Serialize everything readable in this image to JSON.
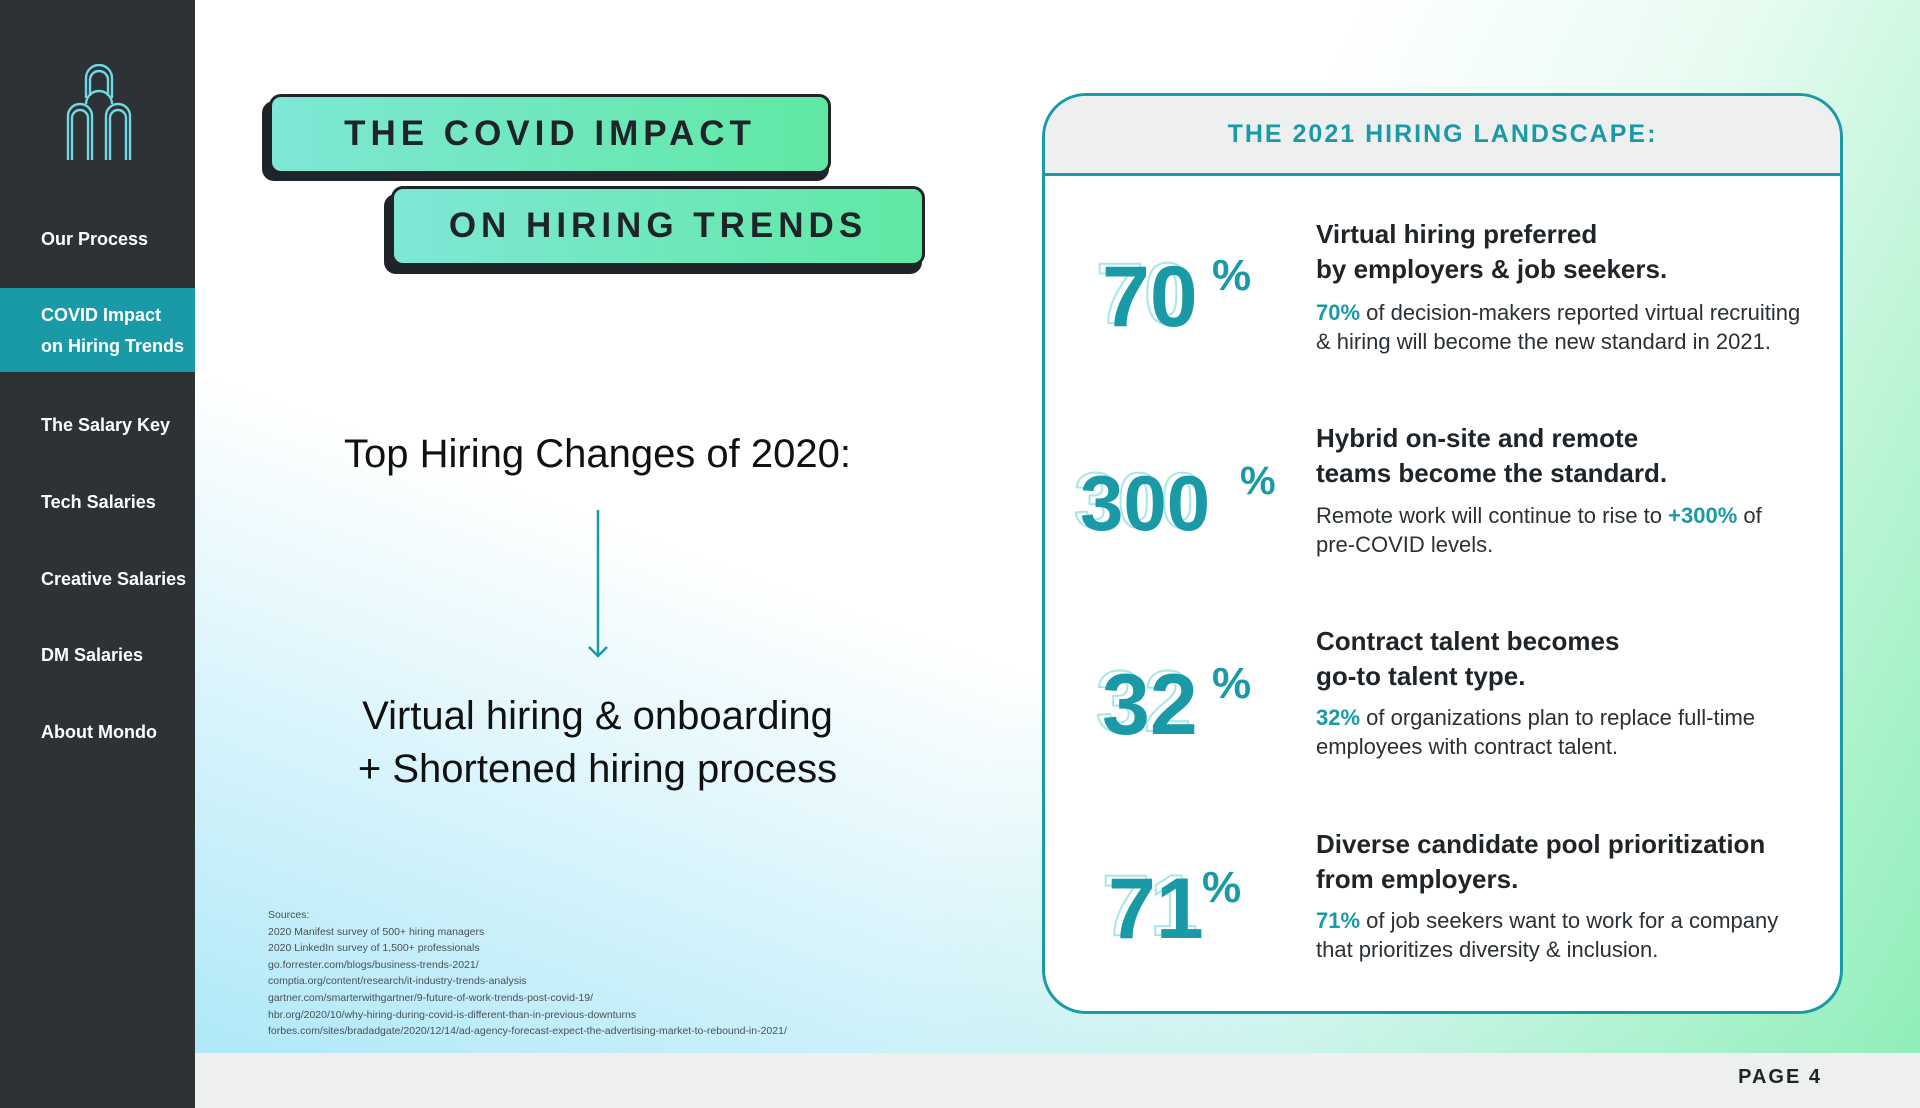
{
  "sidebar": {
    "items": [
      {
        "label": "Our Process"
      },
      {
        "label_line1": "COVID Impact",
        "label_line2": "on Hiring Trends"
      },
      {
        "label": "The Salary Key"
      },
      {
        "label": "Tech Salaries"
      },
      {
        "label": "Creative Salaries"
      },
      {
        "label": "DM Salaries"
      },
      {
        "label": "About Mondo"
      }
    ],
    "active_index": 1
  },
  "title": {
    "line1": "THE COVID IMPACT",
    "line2": "ON HIRING TRENDS"
  },
  "left": {
    "heading": "Top Hiring Changes of 2020:",
    "change1": "Virtual hiring & onboarding",
    "change2": "+ Shortened hiring process",
    "sources_label": "Sources:",
    "sources": [
      "2020 Manifest survey of 500+ hiring managers",
      "2020 LinkedIn survey of 1,500+ professionals",
      "go.forrester.com/blogs/business-trends-2021/",
      "comptia.org/content/research/it-industry-trends-analysis",
      "gartner.com/smarterwithgartner/9-future-of-work-trends-post-covid-19/",
      "hbr.org/2020/10/why-hiring-during-covid-is-different-than-in-previous-downturns",
      "forbes.com/sites/bradadgate/2020/12/14/ad-agency-forecast-expect-the-advertising-market-to-rebound-in-2021/"
    ]
  },
  "panel": {
    "heading": "THE 2021 HIRING LANDSCAPE:",
    "stats": [
      {
        "number": "70",
        "percent": "%",
        "title1": "Virtual hiring preferred",
        "title2": "by employers & job seekers.",
        "hl": "70%",
        "desc1_rest": " of decision-makers reported virtual recruiting",
        "desc2": "& hiring will become the new standard in 2021."
      },
      {
        "number": "300",
        "percent": "%",
        "title1": "Hybrid on-site and remote",
        "title2": "teams become the standard.",
        "desc1_pre": "Remote work will continue to rise to ",
        "hl": "+300%",
        "desc1_post": " of",
        "desc2": "pre-COVID levels."
      },
      {
        "number": "32",
        "percent": "%",
        "title1": "Contract talent becomes",
        "title2": "go-to talent type.",
        "hl": "32%",
        "desc1_rest": " of organizations plan to replace full-time",
        "desc2": "employees with contract talent."
      },
      {
        "number": "71",
        "percent": "%",
        "title1": "Diverse candidate pool prioritization",
        "title2": "from employers.",
        "hl": "71%",
        "desc1_rest": " of job seekers want to work for a company",
        "desc2": "that prioritizes diversity & inclusion."
      }
    ]
  },
  "footer": {
    "page_label": "PAGE 4"
  },
  "colors": {
    "sidebar_bg": "#2c3236",
    "accent": "#1a9aa6",
    "banner_from": "#7ee7d6",
    "banner_to": "#5fe8a3"
  },
  "icons": {
    "logo": "mondo-logo-icon",
    "arrow": "arrow-down-icon"
  }
}
